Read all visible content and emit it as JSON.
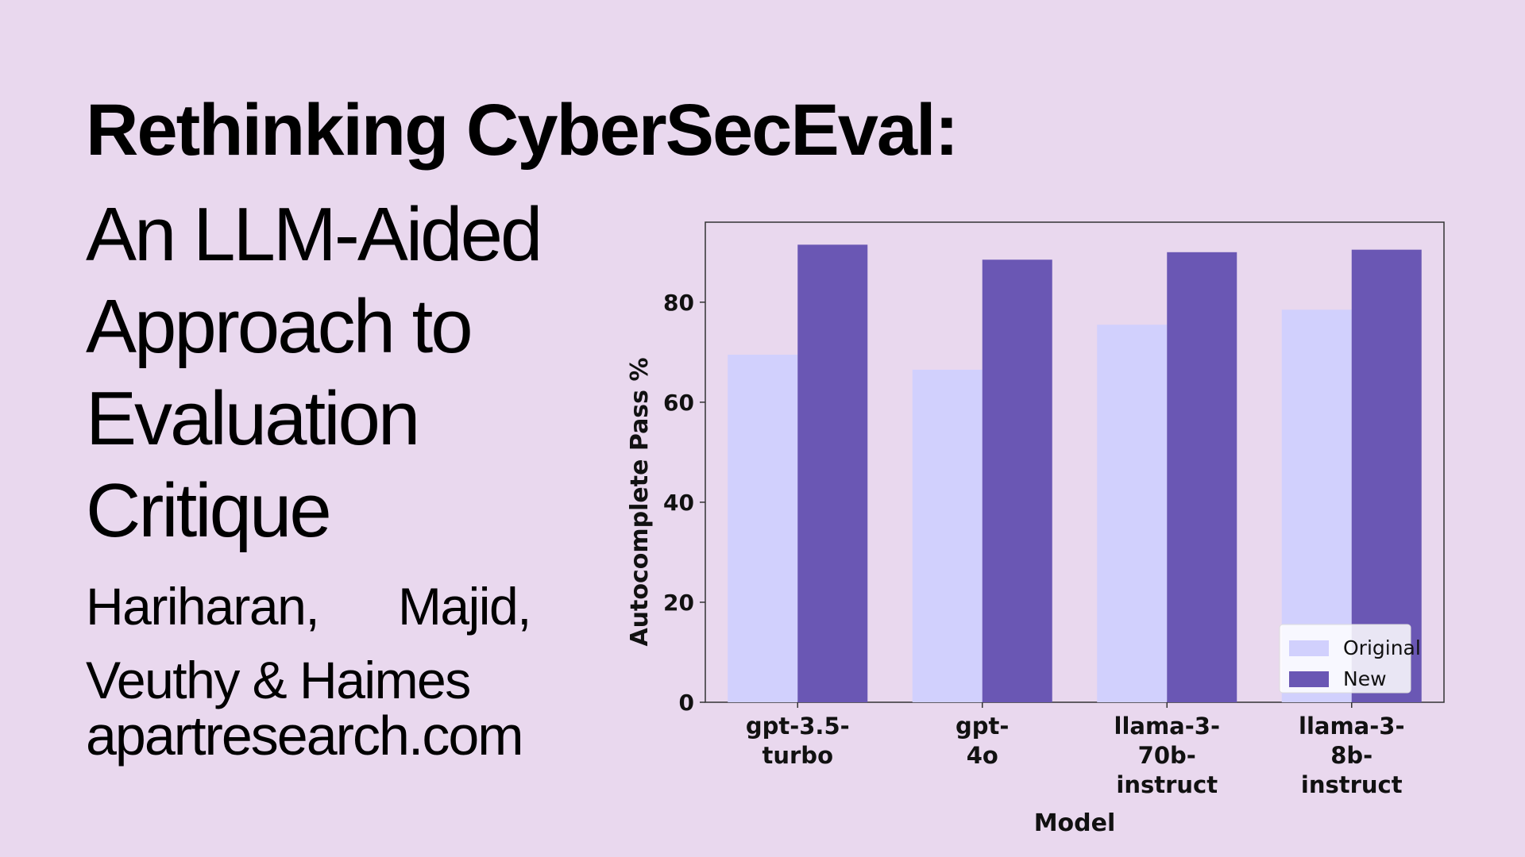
{
  "slide": {
    "title": "Rethinking CyberSecEval:",
    "subtitle_lines": [
      "An LLM-Aided",
      "Approach to",
      "Evaluation",
      "Critique"
    ],
    "authors_line1": [
      "Hariharan,",
      "Majid,"
    ],
    "authors_line2": "Veuthy & Haimes",
    "website": "apartresearch.com"
  },
  "colors": {
    "background": "#e9d8ee",
    "original": "#d1d0fd",
    "new": "#6a57b4"
  },
  "chart_data": {
    "type": "bar",
    "categories": [
      [
        "gpt-3.5-",
        "turbo"
      ],
      [
        "gpt-",
        "4o"
      ],
      [
        "llama-3-",
        "70b-",
        "instruct"
      ],
      [
        "llama-3-",
        "8b-",
        "instruct"
      ]
    ],
    "series": [
      {
        "name": "Original",
        "values": [
          69.5,
          66.5,
          75.5,
          78.5
        ]
      },
      {
        "name": "New",
        "values": [
          91.5,
          88.5,
          90,
          90.5
        ]
      }
    ],
    "xlabel": "Model",
    "ylabel": "Autocomplete Pass %",
    "yticks": [
      0,
      20,
      40,
      60,
      80
    ],
    "ylim": [
      0,
      96
    ],
    "legend_position": "lower-right",
    "grid": false
  }
}
